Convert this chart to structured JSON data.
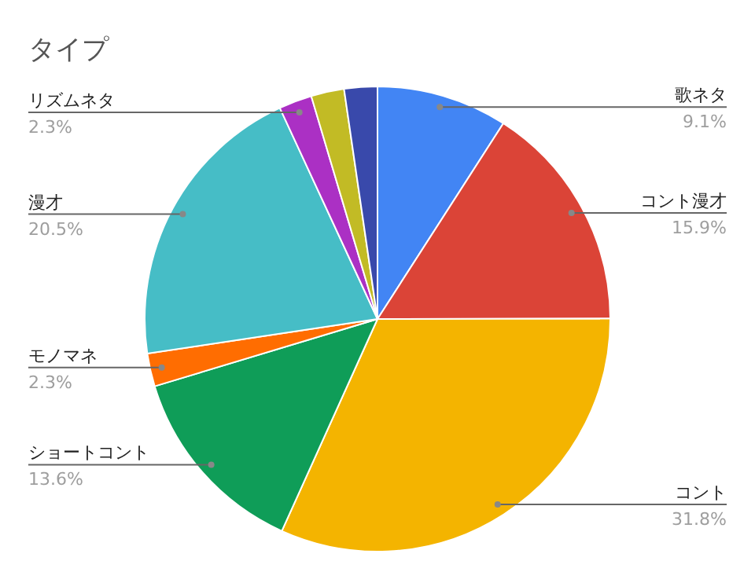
{
  "chart_data": {
    "type": "pie",
    "title": "タイプ",
    "categories": [
      "歌ネタ",
      "コント漫才",
      "コント",
      "ショートコント",
      "モノマネ",
      "漫才",
      "リズムネタ",
      null,
      null
    ],
    "values": [
      9.1,
      15.9,
      31.8,
      13.6,
      2.3,
      20.5,
      2.3,
      2.3,
      2.3
    ],
    "value_labels": [
      "9.1%",
      "15.9%",
      "31.8%",
      "13.6%",
      "2.3%",
      "20.5%",
      "2.3%",
      null,
      null
    ],
    "colors": [
      "#4285f4",
      "#db4437",
      "#f4b400",
      "#0f9d58",
      "#ff6d01",
      "#46bdc6",
      "#ab30c4",
      "#c2bb25",
      "#3949ab"
    ]
  }
}
